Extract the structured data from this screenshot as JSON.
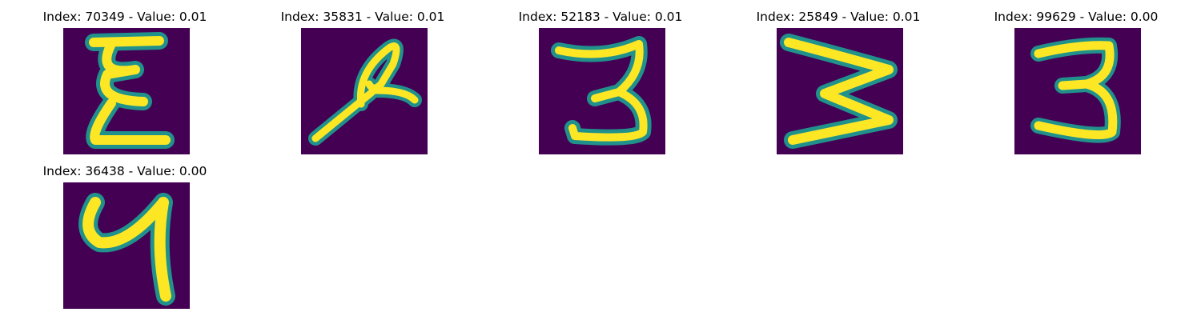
{
  "figure": {
    "panels": [
      {
        "title": "Index: 70349 - Value: 0.01",
        "glyph": "ξ-like digit (3/E stroke)"
      },
      {
        "title": "Index: 35831 - Value: 0.01",
        "glyph": "looped slanted digit"
      },
      {
        "title": "Index: 52183 - Value: 0.01",
        "glyph": "3"
      },
      {
        "title": "Index: 25849 - Value: 0.01",
        "glyph": "sideways 3 / Σ"
      },
      {
        "title": "Index: 99629 - Value: 0.00",
        "glyph": "3"
      },
      {
        "title": "Index: 36438 - Value: 0.00",
        "glyph": "4"
      }
    ],
    "colors": {
      "background": "#440154",
      "edge": "#21918c",
      "stroke": "#fde725"
    }
  }
}
